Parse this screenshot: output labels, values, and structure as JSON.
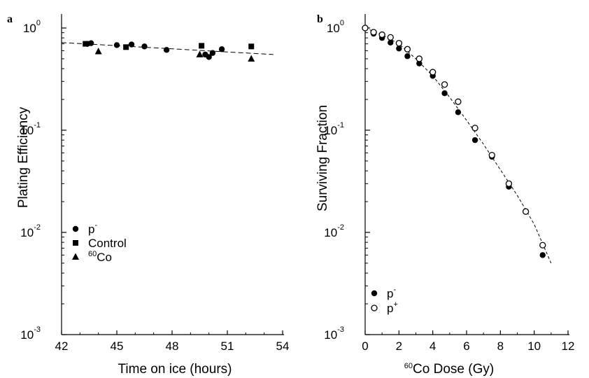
{
  "chart_data": [
    {
      "panel": "a",
      "type": "scatter",
      "xlabel": "Time on ice (hours)",
      "ylabel": "Plating Efficiency",
      "xlim": [
        42,
        54
      ],
      "ylim": [
        0.001,
        1
      ],
      "yscale": "log",
      "x_ticks": [
        "42",
        "45",
        "48",
        "51",
        "54"
      ],
      "y_ticks": [
        {
          "base": "10",
          "exp": "0"
        },
        {
          "base": "10",
          "exp": "-1"
        },
        {
          "base": "10",
          "exp": "-2"
        },
        {
          "base": "10",
          "exp": "-3"
        }
      ],
      "legend_position": "lower-left",
      "series": [
        {
          "name": "p",
          "name_sup": "-",
          "marker": "filled-circle",
          "points": [
            [
              43.4,
              0.7
            ],
            [
              43.6,
              0.71
            ],
            [
              45.0,
              0.68
            ],
            [
              45.8,
              0.69
            ],
            [
              46.5,
              0.66
            ],
            [
              47.7,
              0.61
            ],
            [
              49.8,
              0.55
            ],
            [
              50.0,
              0.52
            ],
            [
              50.2,
              0.57
            ],
            [
              50.7,
              0.62
            ]
          ]
        },
        {
          "name": "Control",
          "marker": "filled-square",
          "points": [
            [
              43.3,
              0.7
            ],
            [
              45.5,
              0.65
            ],
            [
              49.6,
              0.67
            ],
            [
              52.3,
              0.66
            ]
          ]
        },
        {
          "name": "Co",
          "name_pre": "60",
          "marker": "filled-triangle",
          "points": [
            [
              44.0,
              0.59
            ],
            [
              49.5,
              0.55
            ],
            [
              52.3,
              0.5
            ]
          ]
        }
      ],
      "fit_line": {
        "style": "dashed",
        "points": [
          [
            42,
            0.72
          ],
          [
            53.5,
            0.55
          ]
        ]
      }
    },
    {
      "panel": "b",
      "type": "scatter",
      "xlabel": "Co Dose (Gy)",
      "xlabel_pre": "60",
      "ylabel": "Surviving Fraction",
      "xlim": [
        0,
        12
      ],
      "ylim": [
        0.001,
        1
      ],
      "yscale": "log",
      "x_ticks": [
        "0",
        "2",
        "4",
        "6",
        "8",
        "10",
        "12"
      ],
      "y_ticks": [
        {
          "base": "10",
          "exp": "0"
        },
        {
          "base": "10",
          "exp": "-1"
        },
        {
          "base": "10",
          "exp": "-2"
        },
        {
          "base": "10",
          "exp": "-3"
        }
      ],
      "legend_position": "lower-left",
      "series": [
        {
          "name": "p",
          "name_sup": "-",
          "marker": "filled-circle",
          "points": [
            [
              0,
              1.0
            ],
            [
              0.5,
              0.88
            ],
            [
              1.0,
              0.8
            ],
            [
              1.5,
              0.72
            ],
            [
              2.0,
              0.63
            ],
            [
              2.5,
              0.53
            ],
            [
              3.2,
              0.45
            ],
            [
              4.0,
              0.34
            ],
            [
              4.7,
              0.23
            ],
            [
              5.5,
              0.15
            ],
            [
              6.5,
              0.08
            ],
            [
              7.5,
              0.055
            ],
            [
              8.5,
              0.028
            ],
            [
              9.5,
              0.016
            ],
            [
              10.5,
              0.006
            ]
          ]
        },
        {
          "name": "p",
          "name_sup": "+",
          "marker": "open-circle",
          "points": [
            [
              0,
              1.0
            ],
            [
              0.5,
              0.91
            ],
            [
              1.0,
              0.86
            ],
            [
              1.5,
              0.81
            ],
            [
              2.0,
              0.71
            ],
            [
              2.5,
              0.62
            ],
            [
              3.2,
              0.5
            ],
            [
              4.0,
              0.37
            ],
            [
              4.7,
              0.28
            ],
            [
              5.5,
              0.19
            ],
            [
              6.5,
              0.105
            ],
            [
              7.5,
              0.057
            ],
            [
              8.5,
              0.03
            ],
            [
              9.5,
              0.016
            ],
            [
              10.5,
              0.0075
            ]
          ]
        }
      ],
      "fit_line": {
        "style": "dashed",
        "points": [
          [
            0,
            1.0
          ],
          [
            1,
            0.86
          ],
          [
            2,
            0.7
          ],
          [
            3,
            0.5
          ],
          [
            4,
            0.34
          ],
          [
            5,
            0.21
          ],
          [
            6,
            0.125
          ],
          [
            7,
            0.073
          ],
          [
            8,
            0.041
          ],
          [
            9,
            0.023
          ],
          [
            10,
            0.012
          ],
          [
            11,
            0.005
          ]
        ]
      }
    }
  ]
}
